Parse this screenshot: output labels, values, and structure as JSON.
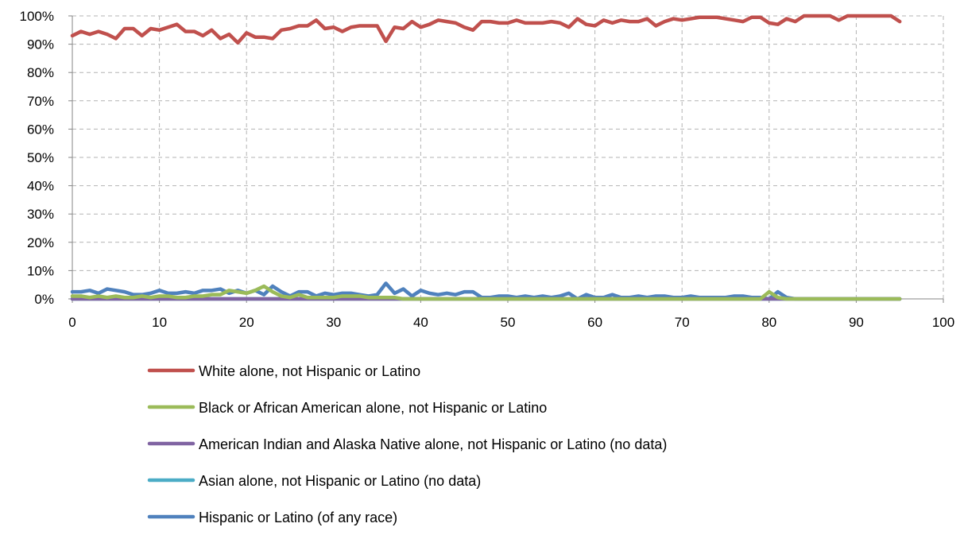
{
  "chart_data": {
    "type": "line",
    "title": "",
    "xlabel": "",
    "ylabel": "",
    "xlim": [
      0,
      100
    ],
    "ylim": [
      0,
      100
    ],
    "x_ticks": [
      "0",
      "10",
      "20",
      "30",
      "40",
      "50",
      "60",
      "70",
      "80",
      "90",
      "100"
    ],
    "y_ticks": [
      "0%",
      "10%",
      "20%",
      "30%",
      "40%",
      "50%",
      "60%",
      "70%",
      "80%",
      "90%",
      "100%"
    ],
    "grid": "dashed major gridlines",
    "legend_position": "bottom",
    "x": [
      0,
      1,
      2,
      3,
      4,
      5,
      6,
      7,
      8,
      9,
      10,
      11,
      12,
      13,
      14,
      15,
      16,
      17,
      18,
      19,
      20,
      21,
      22,
      23,
      24,
      25,
      26,
      27,
      28,
      29,
      30,
      31,
      32,
      33,
      34,
      35,
      36,
      37,
      38,
      39,
      40,
      41,
      42,
      43,
      44,
      45,
      46,
      47,
      48,
      49,
      50,
      51,
      52,
      53,
      54,
      55,
      56,
      57,
      58,
      59,
      60,
      61,
      62,
      63,
      64,
      65,
      66,
      67,
      68,
      69,
      70,
      71,
      72,
      73,
      74,
      75,
      76,
      77,
      78,
      79,
      80,
      81,
      82,
      83,
      84,
      85,
      86,
      87,
      88,
      89,
      90,
      91,
      92,
      93,
      94,
      95
    ],
    "series": [
      {
        "name": "White alone, not Hispanic or Latino",
        "color": "#C0504D",
        "values": [
          93,
          94.5,
          93.5,
          94.5,
          93.5,
          92,
          95.5,
          95.5,
          93,
          95.5,
          95,
          96,
          97,
          94.5,
          94.5,
          93,
          95,
          92,
          93.5,
          90.5,
          94,
          92.5,
          92.5,
          92,
          95,
          95.5,
          96.5,
          96.5,
          98.5,
          95.5,
          96,
          94.5,
          96,
          96.5,
          96.5,
          96.5,
          91,
          96,
          95.5,
          98,
          96,
          97,
          98.5,
          98,
          97.5,
          96,
          95,
          98,
          98,
          97.5,
          97.5,
          98.5,
          97.5,
          97.5,
          97.5,
          98,
          97.5,
          96,
          99,
          97,
          96.5,
          98.5,
          97.5,
          98.5,
          98,
          98,
          99,
          96.5,
          98,
          99,
          98.5,
          99,
          99.5,
          99.5,
          99.5,
          99,
          98.5,
          98,
          99.5,
          99.5,
          97.5,
          97,
          99,
          98,
          100,
          100,
          100,
          100,
          98.5,
          100,
          100,
          100,
          100,
          100,
          100,
          98
        ]
      },
      {
        "name": "Black or African American alone, not Hispanic or Latino",
        "color": "#9BBB59",
        "values": [
          1,
          1,
          0.5,
          1,
          0.5,
          1,
          0.5,
          0.5,
          1,
          0.5,
          1,
          1,
          0.5,
          0.5,
          1,
          1,
          1.5,
          1.5,
          3,
          2.5,
          2,
          3,
          4.5,
          2.5,
          1,
          0.5,
          1.5,
          0.5,
          0.5,
          0.5,
          0.5,
          1,
          1,
          1,
          0.5,
          0.5,
          0.5,
          0.5,
          0,
          0,
          0,
          0,
          0,
          0,
          0,
          0,
          0,
          0,
          0,
          0,
          0,
          0,
          0,
          0,
          0,
          0,
          0,
          0,
          0,
          0,
          0,
          0,
          0,
          0,
          0,
          0,
          0,
          0,
          0,
          0,
          0,
          0,
          0,
          0,
          0,
          0,
          0,
          0,
          0,
          0,
          2.5,
          0.5,
          0,
          0,
          0,
          0,
          0,
          0,
          0,
          0,
          0,
          0,
          0,
          0,
          0,
          0
        ]
      },
      {
        "name": "American Indian and Alaska Native alone, not Hispanic or Latino (no data)",
        "color": "#8064A2",
        "values": [
          0,
          0,
          0,
          0,
          0,
          0,
          0,
          0,
          0,
          0,
          0,
          0,
          0,
          0,
          0,
          0,
          0,
          0,
          0,
          0,
          0,
          0,
          0,
          0,
          0,
          0,
          0,
          0,
          0,
          0,
          0,
          0,
          0,
          0,
          0,
          0,
          0,
          0,
          0,
          0,
          0,
          0,
          0,
          0,
          0,
          0,
          0,
          0,
          0,
          0,
          0,
          0,
          0,
          0,
          0,
          0,
          0,
          0,
          0,
          0,
          0,
          0,
          0,
          0,
          0,
          0,
          0,
          0,
          0,
          0,
          0,
          0,
          0,
          0,
          0,
          0,
          0,
          0,
          0,
          0,
          0,
          0,
          0,
          0,
          0,
          0,
          0,
          0,
          0,
          0,
          0,
          0,
          0,
          0,
          0,
          0
        ]
      },
      {
        "name": "Asian alone, not Hispanic or Latino (no data)",
        "color": "#4BACC6",
        "values": [
          0,
          0,
          0,
          0,
          0,
          0,
          0,
          0,
          0,
          0,
          0,
          0,
          0,
          0,
          0,
          0,
          0,
          0,
          0,
          0,
          0,
          0,
          0,
          0,
          0,
          0,
          0,
          0,
          0,
          0,
          0,
          0,
          0,
          0,
          0,
          0,
          0,
          0,
          0,
          0,
          0,
          0,
          0,
          0,
          0,
          0,
          0,
          0,
          0,
          0,
          0,
          0,
          0,
          0,
          0,
          0,
          0,
          0,
          0,
          0,
          0,
          0,
          0,
          0,
          0,
          0,
          0,
          0,
          0,
          0,
          0,
          0,
          0,
          0,
          0,
          0,
          0,
          0,
          0,
          0,
          0,
          0,
          0,
          0,
          0,
          0,
          0,
          0,
          0,
          0,
          0,
          0,
          0,
          0,
          0,
          0
        ]
      },
      {
        "name": "Hispanic or Latino (of any race)",
        "color": "#4F81BD",
        "values": [
          2.5,
          2.5,
          3,
          2,
          3.5,
          3,
          2.5,
          1.5,
          1.5,
          2,
          3,
          2,
          2,
          2.5,
          2,
          3,
          3,
          3.5,
          2,
          3,
          2,
          3,
          1.5,
          4.5,
          2.5,
          1,
          2.5,
          2.5,
          1,
          2,
          1.5,
          2,
          2,
          1.5,
          1,
          1.5,
          5.5,
          2,
          3.5,
          1,
          3,
          2,
          1.5,
          2,
          1.5,
          2.5,
          2.5,
          0.5,
          0.5,
          1,
          1,
          0.5,
          1,
          0.5,
          1,
          0.5,
          1,
          2,
          0,
          1.5,
          0.5,
          0.5,
          1.5,
          0.5,
          0.5,
          1,
          0.5,
          1,
          1,
          0.5,
          0.5,
          1,
          0.5,
          0.5,
          0.5,
          0.5,
          1,
          1,
          0.5,
          0.5,
          0,
          2.5,
          0.5,
          0,
          0,
          0,
          0,
          0,
          0,
          0,
          0,
          0,
          0,
          0,
          0,
          0
        ]
      }
    ]
  }
}
